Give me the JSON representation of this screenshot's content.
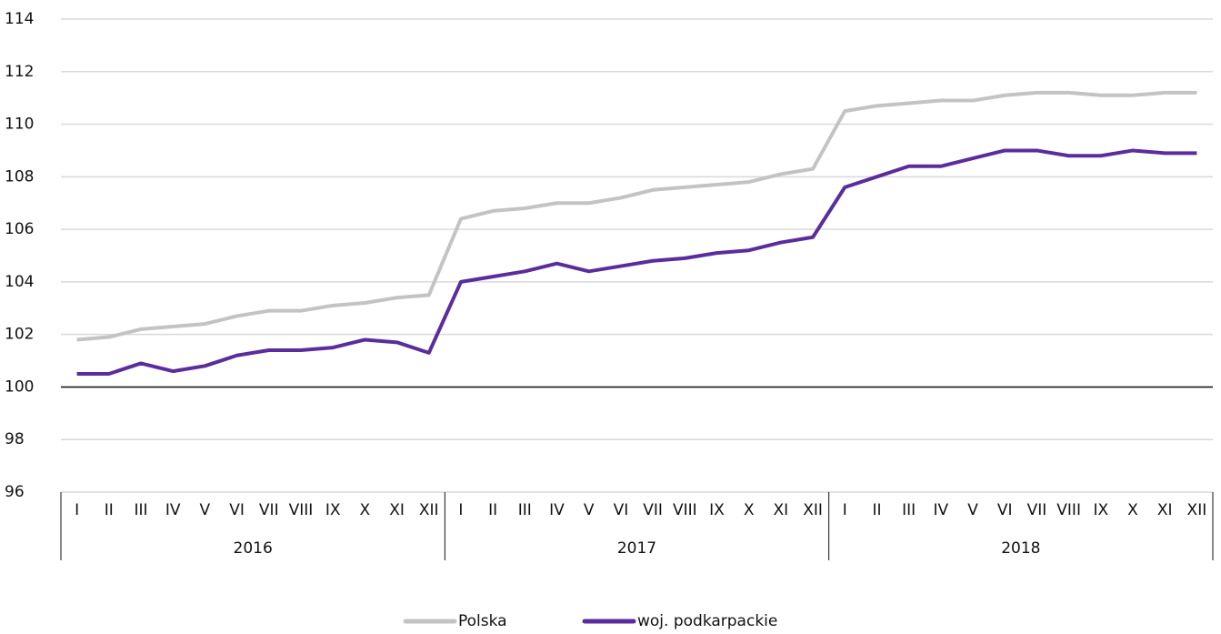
{
  "chart_data": {
    "type": "line",
    "categories": [
      "I",
      "II",
      "III",
      "IV",
      "V",
      "VI",
      "VII",
      "VIII",
      "IX",
      "X",
      "XI",
      "XII",
      "I",
      "II",
      "III",
      "IV",
      "V",
      "VI",
      "VII",
      "VIII",
      "IX",
      "X",
      "XI",
      "XII",
      "I",
      "II",
      "III",
      "IV",
      "V",
      "VI",
      "VII",
      "VIII",
      "IX",
      "X",
      "XI",
      "XII"
    ],
    "category_groups": [
      "2016",
      "2017",
      "2018"
    ],
    "series": [
      {
        "name": "Polska",
        "color": "#c3c3c3",
        "values": [
          101.8,
          101.9,
          102.2,
          102.3,
          102.4,
          102.7,
          102.9,
          102.9,
          103.1,
          103.2,
          103.4,
          103.5,
          106.4,
          106.7,
          106.8,
          107.0,
          107.0,
          107.2,
          107.5,
          107.6,
          107.7,
          107.8,
          108.1,
          108.3,
          110.5,
          110.7,
          110.8,
          110.9,
          110.9,
          111.1,
          111.2,
          111.2,
          111.1,
          111.1,
          111.2,
          111.2
        ]
      },
      {
        "name": "woj. podkarpackie",
        "color": "#5b2d9c",
        "values": [
          100.5,
          100.5,
          100.9,
          100.6,
          100.8,
          101.2,
          101.4,
          101.4,
          101.5,
          101.8,
          101.7,
          101.3,
          104.0,
          104.2,
          104.4,
          104.7,
          104.4,
          104.6,
          104.8,
          104.9,
          105.1,
          105.2,
          105.5,
          105.7,
          107.6,
          108.0,
          108.4,
          108.4,
          108.7,
          109.0,
          109.0,
          108.8,
          108.8,
          109.0,
          108.9,
          108.9
        ]
      }
    ],
    "ylim": [
      96,
      114
    ],
    "yticks": [
      96,
      98,
      100,
      102,
      104,
      106,
      108,
      110,
      112,
      114
    ],
    "grid": true,
    "baseline": 100,
    "legend": "bottom"
  }
}
